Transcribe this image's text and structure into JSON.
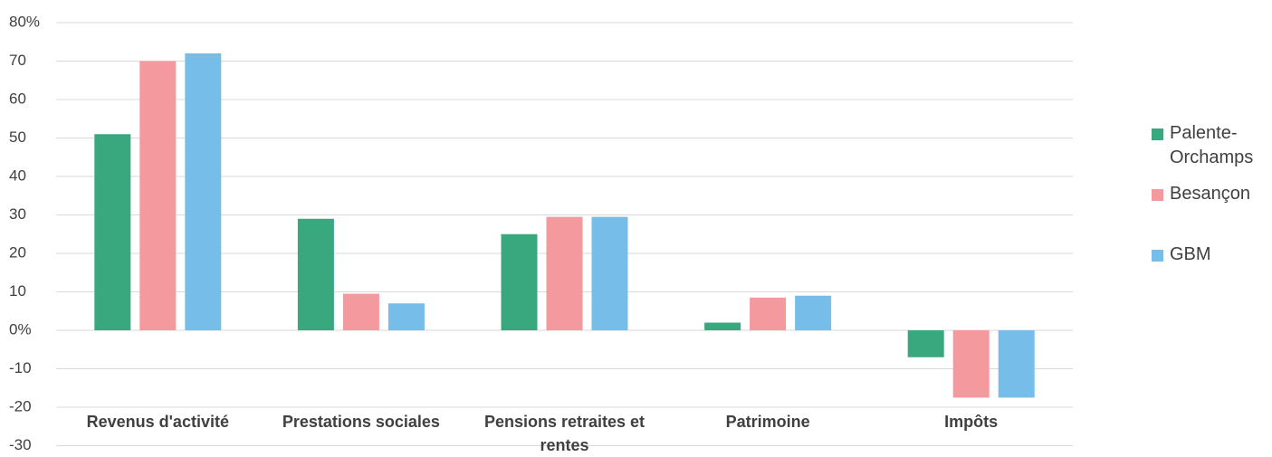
{
  "chart_data": {
    "type": "bar",
    "categories": [
      "Revenus d'activité",
      "Prestations sociales",
      "Pensions retraites et rentes",
      "Patrimoine",
      "Impôts"
    ],
    "series": [
      {
        "name": "Palente-Orchamps",
        "color": "#3aa87e",
        "values": [
          51,
          29,
          25,
          2,
          -7
        ]
      },
      {
        "name": "Besançon",
        "color": "#f4999e",
        "values": [
          70,
          9.5,
          29.5,
          8.5,
          -17.5
        ]
      },
      {
        "name": "GBM",
        "color": "#76bde9",
        "values": [
          72,
          7,
          29.5,
          9,
          -17.5
        ]
      }
    ],
    "ylim": [
      -30,
      80
    ],
    "yticks": [
      -30,
      -20,
      -10,
      {
        "value": 0,
        "label": "0%"
      },
      10,
      20,
      30,
      40,
      50,
      60,
      70,
      {
        "value": 80,
        "label": "80%"
      }
    ],
    "grid": true,
    "legend": "right"
  }
}
